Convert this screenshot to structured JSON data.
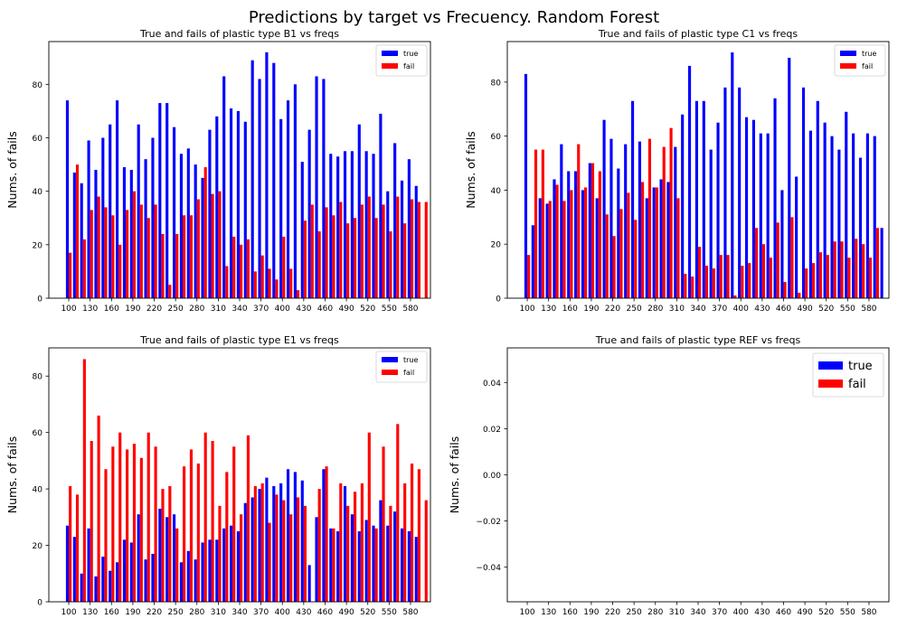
{
  "suptitle": "Predictions by target vs Frecuency. Random Forest",
  "chart_data": [
    {
      "type": "bar",
      "title": "True and fails of plastic type B1 vs freqs",
      "xlabel": "",
      "ylabel": "Nums. of fails",
      "x": [
        100,
        110,
        120,
        130,
        140,
        150,
        160,
        170,
        180,
        190,
        200,
        210,
        220,
        230,
        240,
        250,
        260,
        270,
        280,
        290,
        300,
        310,
        320,
        330,
        340,
        350,
        360,
        370,
        380,
        390,
        400,
        410,
        420,
        430,
        440,
        450,
        460,
        470,
        480,
        490,
        500,
        510,
        520,
        530,
        540,
        550,
        560,
        570,
        580,
        590,
        600
      ],
      "xticks": [
        100,
        130,
        160,
        190,
        220,
        250,
        280,
        310,
        340,
        370,
        400,
        430,
        460,
        490,
        520,
        550,
        580
      ],
      "ylim": [
        0,
        96
      ],
      "yticks": [
        0,
        20,
        40,
        60,
        80
      ],
      "legend": "top-right",
      "grid": false,
      "series": [
        {
          "name": "true",
          "color": "#0000ff",
          "values": [
            74,
            47,
            43,
            59,
            48,
            60,
            65,
            74,
            49,
            48,
            65,
            52,
            60,
            73,
            73,
            64,
            54,
            56,
            50,
            45,
            63,
            68,
            83,
            71,
            70,
            66,
            89,
            82,
            92,
            88,
            67,
            74,
            80,
            51,
            63,
            83,
            82,
            54,
            53,
            55,
            55,
            65,
            55,
            54,
            69,
            40,
            58,
            44,
            52,
            42,
            0
          ]
        },
        {
          "name": "fail",
          "color": "#ff0000",
          "values": [
            17,
            50,
            22,
            33,
            38,
            34,
            31,
            20,
            33,
            40,
            35,
            30,
            35,
            24,
            5,
            24,
            31,
            31,
            37,
            49,
            39,
            40,
            12,
            23,
            20,
            22,
            10,
            16,
            11,
            7,
            23,
            11,
            3,
            29,
            35,
            25,
            34,
            31,
            36,
            28,
            30,
            35,
            38,
            30,
            35,
            25,
            38,
            28,
            37,
            36,
            36
          ]
        }
      ]
    },
    {
      "type": "bar",
      "title": "True and fails of plastic type C1 vs freqs",
      "xlabel": "",
      "ylabel": "Nums. of fails",
      "x": [
        100,
        110,
        120,
        130,
        140,
        150,
        160,
        170,
        180,
        190,
        200,
        210,
        220,
        230,
        240,
        250,
        260,
        270,
        280,
        290,
        300,
        310,
        320,
        330,
        340,
        350,
        360,
        370,
        380,
        390,
        400,
        410,
        420,
        430,
        440,
        450,
        460,
        470,
        480,
        490,
        500,
        510,
        520,
        530,
        540,
        550,
        560,
        570,
        580,
        590,
        600
      ],
      "xticks": [
        100,
        130,
        160,
        190,
        220,
        250,
        280,
        310,
        340,
        370,
        400,
        430,
        460,
        490,
        520,
        550,
        580
      ],
      "ylim": [
        0,
        95
      ],
      "yticks": [
        0,
        20,
        40,
        60,
        80
      ],
      "legend": "top-right",
      "grid": false,
      "series": [
        {
          "name": "true",
          "color": "#0000ff",
          "values": [
            83,
            27,
            37,
            35,
            44,
            57,
            47,
            47,
            40,
            50,
            37,
            66,
            59,
            48,
            57,
            73,
            58,
            37,
            41,
            44,
            43,
            56,
            68,
            86,
            73,
            73,
            55,
            65,
            78,
            91,
            78,
            67,
            66,
            61,
            61,
            74,
            40,
            89,
            45,
            78,
            62,
            73,
            65,
            60,
            55,
            69,
            61,
            52,
            61,
            60,
            26
          ]
        },
        {
          "name": "fail",
          "color": "#ff0000",
          "values": [
            16,
            55,
            55,
            36,
            42,
            36,
            40,
            57,
            41,
            50,
            47,
            31,
            23,
            33,
            39,
            29,
            43,
            59,
            41,
            56,
            63,
            37,
            9,
            8,
            19,
            12,
            11,
            16,
            16,
            1,
            12,
            13,
            26,
            20,
            15,
            28,
            6,
            30,
            2,
            11,
            13,
            17,
            16,
            21,
            21,
            15,
            22,
            20,
            15,
            26,
            0
          ]
        }
      ]
    },
    {
      "type": "bar",
      "title": "True and fails of plastic type E1 vs freqs",
      "xlabel": "",
      "ylabel": "Nums. of fails",
      "x": [
        100,
        110,
        120,
        130,
        140,
        150,
        160,
        170,
        180,
        190,
        200,
        210,
        220,
        230,
        240,
        250,
        260,
        270,
        280,
        290,
        300,
        310,
        320,
        330,
        340,
        350,
        360,
        370,
        380,
        390,
        400,
        410,
        420,
        430,
        440,
        450,
        460,
        470,
        480,
        490,
        500,
        510,
        520,
        530,
        540,
        550,
        560,
        570,
        580,
        590,
        600
      ],
      "xticks": [
        100,
        130,
        160,
        190,
        220,
        250,
        280,
        310,
        340,
        370,
        400,
        430,
        460,
        490,
        520,
        550,
        580
      ],
      "ylim": [
        0,
        90
      ],
      "yticks": [
        0,
        20,
        40,
        60,
        80
      ],
      "legend": "top-right",
      "grid": false,
      "series": [
        {
          "name": "true",
          "color": "#0000ff",
          "values": [
            27,
            23,
            10,
            26,
            9,
            16,
            11,
            14,
            22,
            21,
            31,
            15,
            17,
            33,
            30,
            31,
            14,
            18,
            15,
            21,
            22,
            22,
            26,
            27,
            25,
            35,
            37,
            40,
            44,
            41,
            42,
            47,
            46,
            43,
            13,
            30,
            47,
            26,
            25,
            41,
            31,
            25,
            29,
            27,
            36,
            27,
            32,
            26,
            25,
            23,
            0
          ]
        },
        {
          "name": "fail",
          "color": "#ff0000",
          "values": [
            41,
            38,
            86,
            57,
            66,
            47,
            55,
            60,
            54,
            56,
            51,
            60,
            55,
            40,
            41,
            26,
            48,
            54,
            49,
            60,
            57,
            34,
            46,
            55,
            31,
            59,
            41,
            42,
            28,
            38,
            36,
            31,
            37,
            34,
            0,
            40,
            48,
            26,
            42,
            34,
            39,
            42,
            60,
            26,
            55,
            34,
            63,
            42,
            49,
            47,
            36
          ]
        }
      ]
    },
    {
      "type": "bar",
      "title": "True and fails of plastic type REF vs freqs",
      "xlabel": "",
      "ylabel": "Nums. of fails",
      "x": [],
      "xticks": [
        100,
        130,
        160,
        190,
        220,
        250,
        280,
        310,
        340,
        370,
        400,
        430,
        460,
        490,
        520,
        550,
        580
      ],
      "ylim": [
        -0.055,
        0.055
      ],
      "yticks": [
        -0.04,
        -0.02,
        0.0,
        0.02,
        0.04
      ],
      "ytick_labels": [
        "−0.04",
        "−0.02",
        "0.00",
        "0.02",
        "0.04"
      ],
      "legend": "top-right",
      "grid": false,
      "series": [
        {
          "name": "true",
          "color": "#0000ff",
          "values": []
        },
        {
          "name": "fail",
          "color": "#ff0000",
          "values": []
        }
      ]
    }
  ]
}
